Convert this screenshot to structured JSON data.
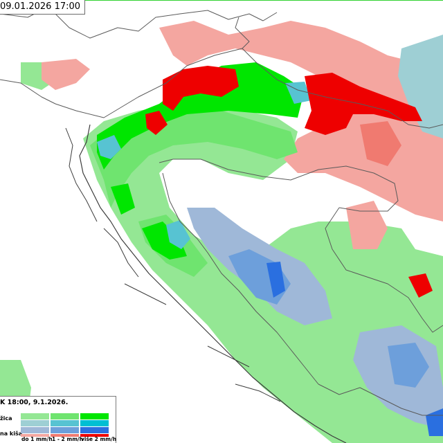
{
  "map": {
    "timestamp": "09.01.2026 17:00",
    "colors": {
      "sea_land_bg": "#ffffff",
      "border": "#5a5a5a",
      "coast": "#3c3c3c",
      "outer_frame_green": "#2fd12f"
    }
  },
  "legend": {
    "title": "K 18:00, 9.1.2026.",
    "rows": [
      {
        "label": "žica",
        "colors": [
          "#94e794",
          "#6fe46f",
          "#00e600"
        ]
      },
      {
        "label": "",
        "colors": [
          "#9ecfd4",
          "#57c3d2",
          "#00bfd3"
        ]
      },
      {
        "label": "",
        "colors": [
          "#9fb8d8",
          "#6d9fdb",
          "#2a6fe0"
        ]
      },
      {
        "label": "na kiša\"",
        "colors": [
          "#f4a6a0",
          "#f07a70",
          "#ee0000"
        ]
      }
    ],
    "columns": [
      "do 1 mm/h",
      "1 - 2 mm/h",
      "više 2 mm/h"
    ]
  }
}
